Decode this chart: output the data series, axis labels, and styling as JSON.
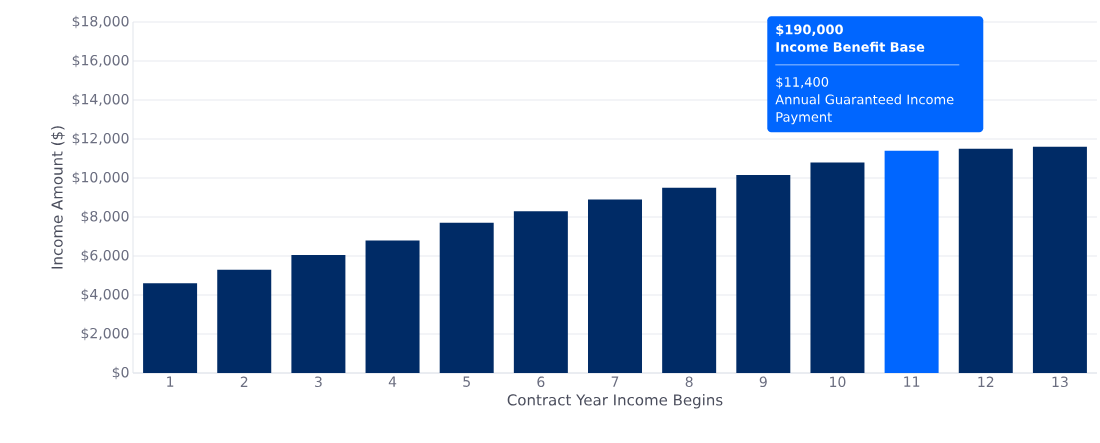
{
  "chart_data": {
    "type": "bar",
    "xlabel": "Contract Year Income Begins",
    "ylabel": "Income Amount ($)",
    "categories": [
      "1",
      "2",
      "3",
      "4",
      "5",
      "6",
      "7",
      "8",
      "9",
      "10",
      "11",
      "12",
      "13"
    ],
    "values": [
      4600,
      5300,
      6050,
      6800,
      7700,
      8300,
      8900,
      9500,
      10150,
      10800,
      11400,
      11500,
      11600
    ],
    "colors": [
      "#002b66",
      "#002b66",
      "#002b66",
      "#002b66",
      "#002b66",
      "#002b66",
      "#002b66",
      "#002b66",
      "#002b66",
      "#002b66",
      "#0066ff",
      "#002b66",
      "#002b66"
    ],
    "ylim": [
      0,
      18000
    ],
    "yticks": [
      {
        "value": 0,
        "label": "$0"
      },
      {
        "value": 2000,
        "label": "$2,000"
      },
      {
        "value": 4000,
        "label": "$4,000"
      },
      {
        "value": 6000,
        "label": "$6,000"
      },
      {
        "value": 8000,
        "label": "$8,000"
      },
      {
        "value": 10000,
        "label": "$10,000"
      },
      {
        "value": 12000,
        "label": "$12,000"
      },
      {
        "value": 14000,
        "label": "$14,000"
      },
      {
        "value": 16000,
        "label": "$16,000"
      },
      {
        "value": 18000,
        "label": "$18,000"
      }
    ],
    "grid": "y",
    "annotations": [
      "$190,000",
      "Income Benefit Base",
      "$11,400",
      "Annual Guaranteed Income Payment"
    ]
  }
}
